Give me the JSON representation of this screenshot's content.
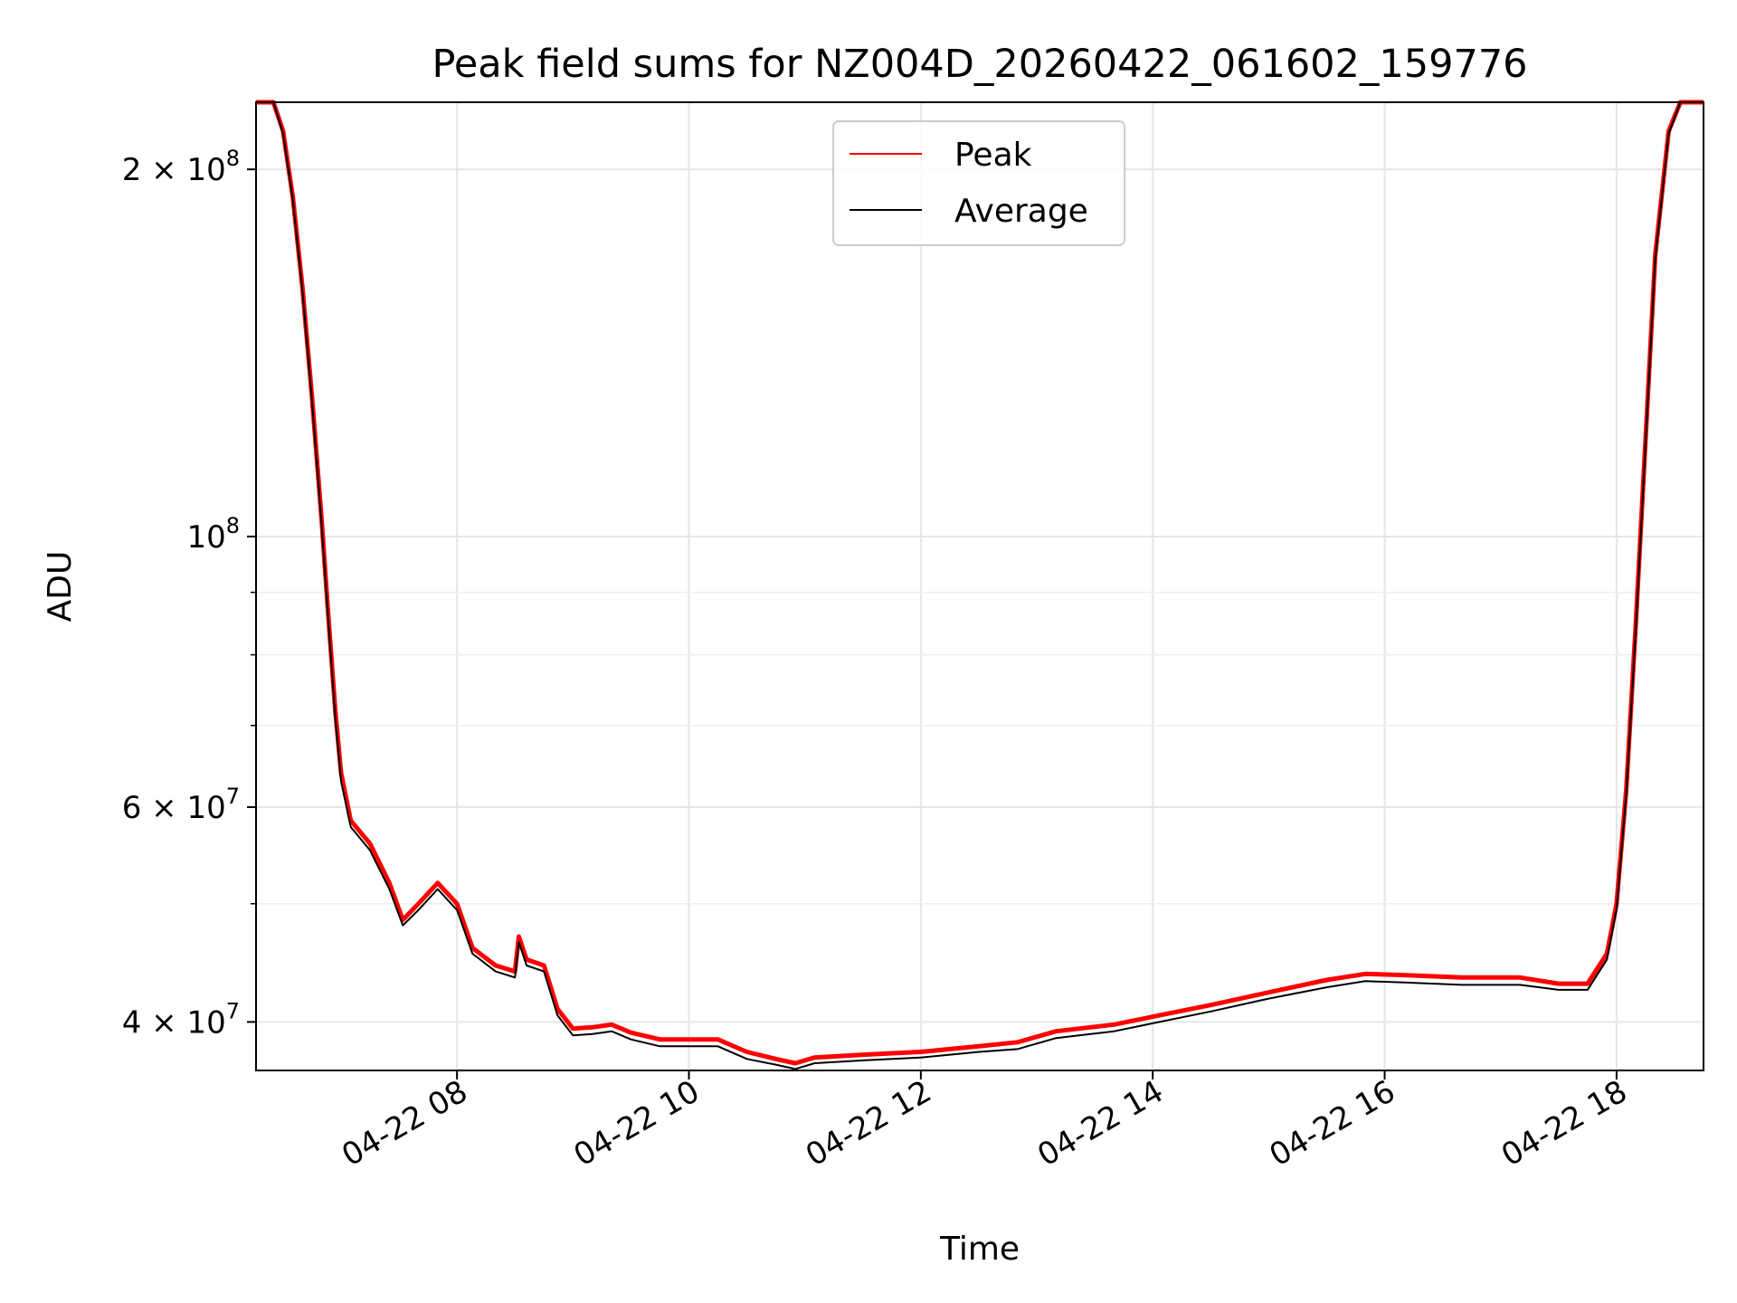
{
  "chart_data": {
    "type": "line",
    "title": "Peak field sums for NZ004D_20260422_061602_159776",
    "xlabel": "Time",
    "ylabel": "ADU",
    "yscale": "log",
    "xlim": [
      "2026-04-22 06:16",
      "2026-04-22 18:45"
    ],
    "ylim": [
      36500000,
      227000000
    ],
    "x_ticks": [
      {
        "value": "2026-04-22 08:00",
        "label": "04-22 08"
      },
      {
        "value": "2026-04-22 10:00",
        "label": "04-22 10"
      },
      {
        "value": "2026-04-22 12:00",
        "label": "04-22 12"
      },
      {
        "value": "2026-04-22 14:00",
        "label": "04-22 14"
      },
      {
        "value": "2026-04-22 16:00",
        "label": "04-22 16"
      },
      {
        "value": "2026-04-22 18:00",
        "label": "04-22 18"
      }
    ],
    "y_ticks": [
      {
        "value": 40000000,
        "base": "4 × 10",
        "exp": "7"
      },
      {
        "value": 60000000,
        "base": "6 × 10",
        "exp": "7"
      },
      {
        "value": 100000000,
        "base": "10",
        "exp": "8"
      },
      {
        "value": 200000000,
        "base": "2 × 10",
        "exp": "8"
      }
    ],
    "y_minor_ticks": [
      50000000,
      70000000,
      80000000,
      90000000
    ],
    "grid": true,
    "legend_position": "top-center",
    "series": [
      {
        "name": "Peak",
        "color": "#ff0000",
        "points": [
          [
            "2026-04-22 06:16",
            227000000
          ],
          [
            "2026-04-22 06:25",
            227000000
          ],
          [
            "2026-04-22 06:30",
            215000000
          ],
          [
            "2026-04-22 06:35",
            190000000
          ],
          [
            "2026-04-22 06:40",
            160000000
          ],
          [
            "2026-04-22 06:45",
            130000000
          ],
          [
            "2026-04-22 06:50",
            103000000
          ],
          [
            "2026-04-22 06:53",
            88000000
          ],
          [
            "2026-04-22 06:57",
            72000000
          ],
          [
            "2026-04-22 07:00",
            64000000
          ],
          [
            "2026-04-22 07:05",
            58500000
          ],
          [
            "2026-04-22 07:15",
            56000000
          ],
          [
            "2026-04-22 07:25",
            52000000
          ],
          [
            "2026-04-22 07:32",
            48500000
          ],
          [
            "2026-04-22 07:40",
            50000000
          ],
          [
            "2026-04-22 07:50",
            52000000
          ],
          [
            "2026-04-22 08:00",
            50000000
          ],
          [
            "2026-04-22 08:08",
            46000000
          ],
          [
            "2026-04-22 08:20",
            44500000
          ],
          [
            "2026-04-22 08:30",
            44000000
          ],
          [
            "2026-04-22 08:32",
            47000000
          ],
          [
            "2026-04-22 08:36",
            45000000
          ],
          [
            "2026-04-22 08:45",
            44500000
          ],
          [
            "2026-04-22 08:52",
            41000000
          ],
          [
            "2026-04-22 09:00",
            39500000
          ],
          [
            "2026-04-22 09:10",
            39600000
          ],
          [
            "2026-04-22 09:20",
            39800000
          ],
          [
            "2026-04-22 09:30",
            39200000
          ],
          [
            "2026-04-22 09:45",
            38700000
          ],
          [
            "2026-04-22 10:00",
            38700000
          ],
          [
            "2026-04-22 10:15",
            38700000
          ],
          [
            "2026-04-22 10:30",
            37800000
          ],
          [
            "2026-04-22 10:45",
            37300000
          ],
          [
            "2026-04-22 10:55",
            37000000
          ],
          [
            "2026-04-22 11:05",
            37400000
          ],
          [
            "2026-04-22 11:30",
            37600000
          ],
          [
            "2026-04-22 12:00",
            37800000
          ],
          [
            "2026-04-22 12:30",
            38200000
          ],
          [
            "2026-04-22 12:50",
            38500000
          ],
          [
            "2026-04-22 13:10",
            39300000
          ],
          [
            "2026-04-22 13:40",
            39800000
          ],
          [
            "2026-04-22 14:00",
            40400000
          ],
          [
            "2026-04-22 14:30",
            41300000
          ],
          [
            "2026-04-22 15:00",
            42300000
          ],
          [
            "2026-04-22 15:30",
            43300000
          ],
          [
            "2026-04-22 15:50",
            43800000
          ],
          [
            "2026-04-22 16:10",
            43700000
          ],
          [
            "2026-04-22 16:40",
            43500000
          ],
          [
            "2026-04-22 17:10",
            43500000
          ],
          [
            "2026-04-22 17:30",
            43000000
          ],
          [
            "2026-04-22 17:45",
            43000000
          ],
          [
            "2026-04-22 17:55",
            45500000
          ],
          [
            "2026-04-22 18:00",
            50000000
          ],
          [
            "2026-04-22 18:05",
            62000000
          ],
          [
            "2026-04-22 18:10",
            85000000
          ],
          [
            "2026-04-22 18:15",
            120000000
          ],
          [
            "2026-04-22 18:20",
            170000000
          ],
          [
            "2026-04-22 18:27",
            215000000
          ],
          [
            "2026-04-22 18:33",
            227000000
          ],
          [
            "2026-04-22 18:45",
            227000000
          ]
        ]
      },
      {
        "name": "Average",
        "color": "#000000",
        "points": [
          [
            "2026-04-22 06:16",
            227000000
          ],
          [
            "2026-04-22 06:25",
            227000000
          ],
          [
            "2026-04-22 06:30",
            214000000
          ],
          [
            "2026-04-22 06:35",
            189000000
          ],
          [
            "2026-04-22 06:40",
            159000000
          ],
          [
            "2026-04-22 06:45",
            129000000
          ],
          [
            "2026-04-22 06:50",
            102000000
          ],
          [
            "2026-04-22 06:53",
            87000000
          ],
          [
            "2026-04-22 06:57",
            71000000
          ],
          [
            "2026-04-22 07:00",
            63000000
          ],
          [
            "2026-04-22 07:05",
            57800000
          ],
          [
            "2026-04-22 07:15",
            55300000
          ],
          [
            "2026-04-22 07:25",
            51400000
          ],
          [
            "2026-04-22 07:32",
            48000000
          ],
          [
            "2026-04-22 07:40",
            49400000
          ],
          [
            "2026-04-22 07:50",
            51400000
          ],
          [
            "2026-04-22 08:00",
            49400000
          ],
          [
            "2026-04-22 08:08",
            45500000
          ],
          [
            "2026-04-22 08:20",
            44000000
          ],
          [
            "2026-04-22 08:30",
            43500000
          ],
          [
            "2026-04-22 08:32",
            46500000
          ],
          [
            "2026-04-22 08:36",
            44500000
          ],
          [
            "2026-04-22 08:45",
            44000000
          ],
          [
            "2026-04-22 08:52",
            40500000
          ],
          [
            "2026-04-22 09:00",
            39000000
          ],
          [
            "2026-04-22 09:10",
            39100000
          ],
          [
            "2026-04-22 09:20",
            39300000
          ],
          [
            "2026-04-22 09:30",
            38700000
          ],
          [
            "2026-04-22 09:45",
            38200000
          ],
          [
            "2026-04-22 10:00",
            38200000
          ],
          [
            "2026-04-22 10:15",
            38200000
          ],
          [
            "2026-04-22 10:30",
            37300000
          ],
          [
            "2026-04-22 10:45",
            36900000
          ],
          [
            "2026-04-22 10:55",
            36600000
          ],
          [
            "2026-04-22 11:05",
            37000000
          ],
          [
            "2026-04-22 11:30",
            37200000
          ],
          [
            "2026-04-22 12:00",
            37400000
          ],
          [
            "2026-04-22 12:30",
            37800000
          ],
          [
            "2026-04-22 12:50",
            38000000
          ],
          [
            "2026-04-22 13:10",
            38800000
          ],
          [
            "2026-04-22 13:40",
            39300000
          ],
          [
            "2026-04-22 14:00",
            39900000
          ],
          [
            "2026-04-22 14:30",
            40800000
          ],
          [
            "2026-04-22 15:00",
            41800000
          ],
          [
            "2026-04-22 15:30",
            42700000
          ],
          [
            "2026-04-22 15:50",
            43200000
          ],
          [
            "2026-04-22 16:10",
            43100000
          ],
          [
            "2026-04-22 16:40",
            42900000
          ],
          [
            "2026-04-22 17:10",
            42900000
          ],
          [
            "2026-04-22 17:30",
            42500000
          ],
          [
            "2026-04-22 17:45",
            42500000
          ],
          [
            "2026-04-22 17:55",
            45000000
          ],
          [
            "2026-04-22 18:00",
            49500000
          ],
          [
            "2026-04-22 18:05",
            61500000
          ],
          [
            "2026-04-22 18:10",
            84000000
          ],
          [
            "2026-04-22 18:15",
            119000000
          ],
          [
            "2026-04-22 18:20",
            169000000
          ],
          [
            "2026-04-22 18:27",
            214000000
          ],
          [
            "2026-04-22 18:33",
            227000000
          ],
          [
            "2026-04-22 18:45",
            227000000
          ]
        ]
      }
    ]
  }
}
